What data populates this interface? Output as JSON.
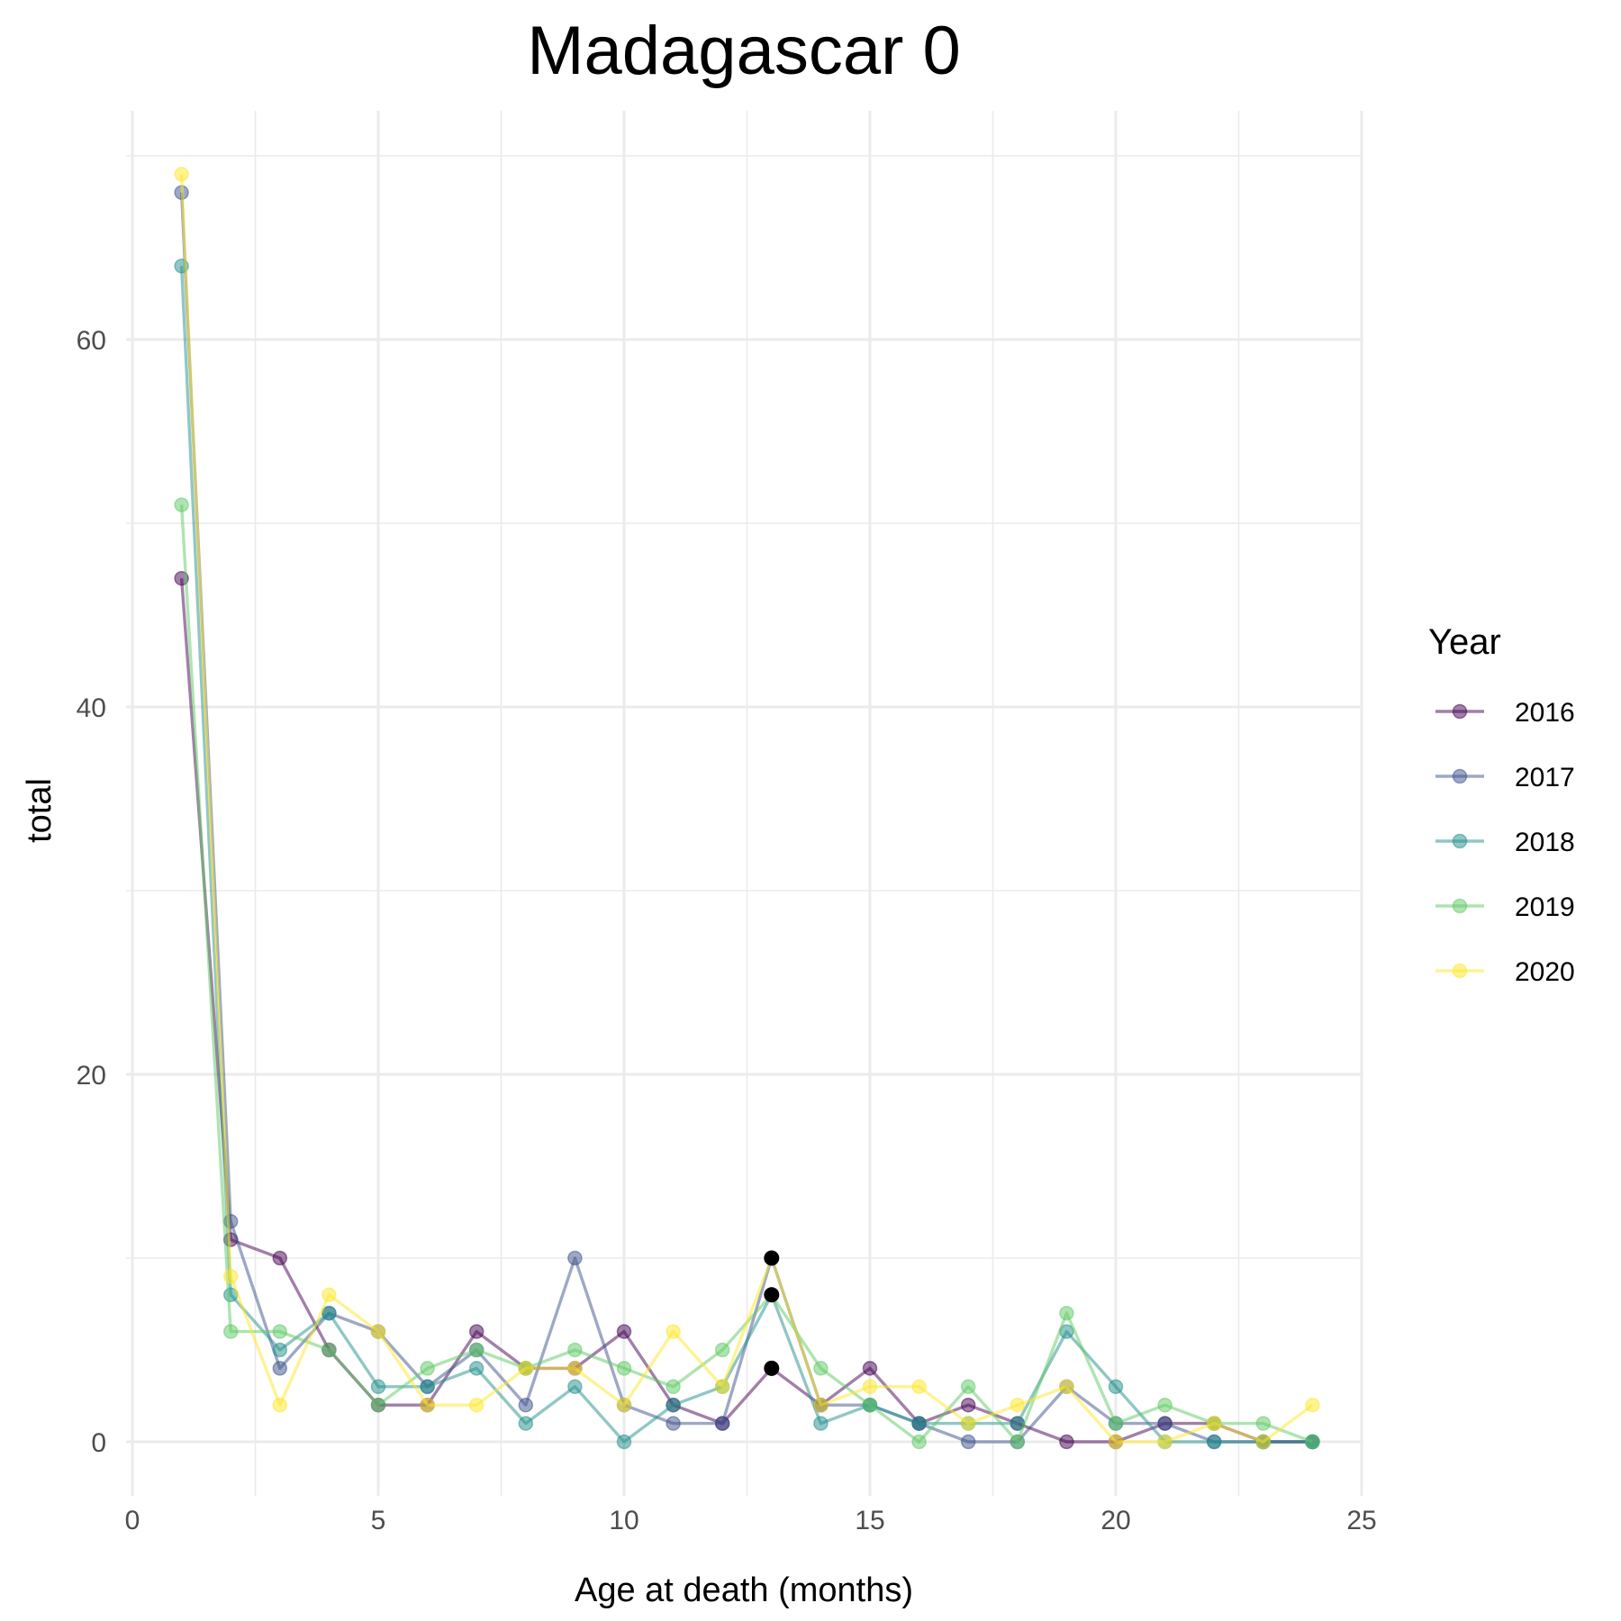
{
  "chart_data": {
    "type": "line",
    "title": "Madagascar 0",
    "xlabel": "Age at death (months)",
    "ylabel": "total",
    "xlim": [
      0,
      25
    ],
    "ylim": [
      -3,
      72
    ],
    "x_ticks": [
      0,
      5,
      10,
      15,
      20,
      25
    ],
    "y_ticks": [
      0,
      20,
      40,
      60
    ],
    "grid": true,
    "legend": {
      "title": "Year",
      "position": "right"
    },
    "x": [
      1,
      2,
      3,
      4,
      5,
      6,
      7,
      8,
      9,
      10,
      11,
      12,
      13,
      14,
      15,
      16,
      17,
      18,
      19,
      20,
      21,
      22,
      23,
      24
    ],
    "series": [
      {
        "name": "2016",
        "color": "#440154",
        "values": [
          47,
          11,
          10,
          5,
          2,
          2,
          6,
          4,
          4,
          6,
          2,
          1,
          4,
          2,
          4,
          1,
          2,
          1,
          0,
          0,
          1,
          1,
          0,
          0
        ]
      },
      {
        "name": "2017",
        "color": "#3b528b",
        "values": [
          68,
          12,
          4,
          7,
          6,
          3,
          5,
          2,
          10,
          2,
          1,
          1,
          10,
          2,
          2,
          1,
          0,
          0,
          3,
          1,
          1,
          0,
          0,
          0
        ]
      },
      {
        "name": "2018",
        "color": "#21908c",
        "values": [
          64,
          8,
          5,
          7,
          3,
          3,
          4,
          1,
          3,
          0,
          2,
          3,
          8,
          1,
          2,
          1,
          1,
          1,
          6,
          3,
          0,
          0,
          0,
          0
        ]
      },
      {
        "name": "2019",
        "color": "#5dc963",
        "values": [
          51,
          6,
          6,
          5,
          2,
          4,
          5,
          4,
          5,
          4,
          3,
          5,
          8,
          4,
          2,
          0,
          3,
          0,
          7,
          1,
          2,
          1,
          1,
          0
        ]
      },
      {
        "name": "2020",
        "color": "#fde725",
        "values": [
          69,
          9,
          2,
          8,
          6,
          2,
          2,
          4,
          4,
          2,
          6,
          3,
          10,
          2,
          3,
          3,
          1,
          2,
          3,
          0,
          0,
          1,
          0,
          2
        ]
      }
    ],
    "highlighted_points": [
      {
        "x": 13,
        "y": 10
      },
      {
        "x": 13,
        "y": 8
      },
      {
        "x": 13,
        "y": 4
      }
    ]
  }
}
